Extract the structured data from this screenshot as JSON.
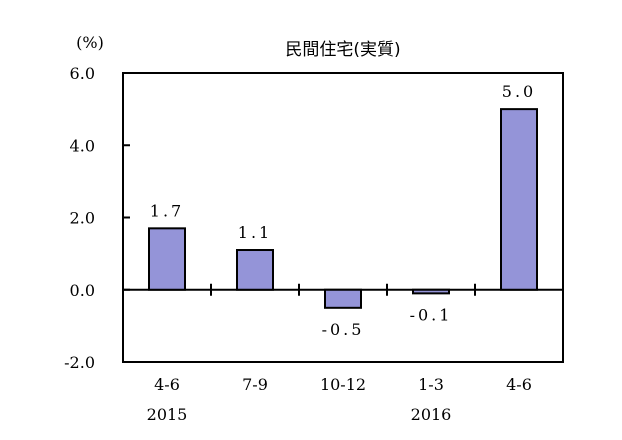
{
  "chart_data": {
    "type": "bar",
    "title": "民間住宅(実質)",
    "ylabel": "(%)",
    "xlabel": "",
    "categories": [
      "4-6",
      "7-9",
      "10-12",
      "1-3",
      "4-6"
    ],
    "year_labels": [
      "2015",
      "",
      "",
      "2016",
      ""
    ],
    "values": [
      1.7,
      1.1,
      -0.5,
      -0.1,
      5.0
    ],
    "data_labels": [
      "1.7",
      "1.1",
      "-0.5",
      "-0.1",
      "5.0"
    ],
    "ylim": [
      -2.0,
      6.0
    ],
    "yticks": [
      6.0,
      4.0,
      2.0,
      0.0,
      -2.0
    ],
    "ytick_labels": [
      "6.0",
      "4.0",
      "2.0",
      "0.0",
      "-2.0"
    ],
    "grid": false,
    "colors": {
      "bar": "#9494d8",
      "negative_label": "#e0201c",
      "positive_label": "#000000"
    }
  }
}
